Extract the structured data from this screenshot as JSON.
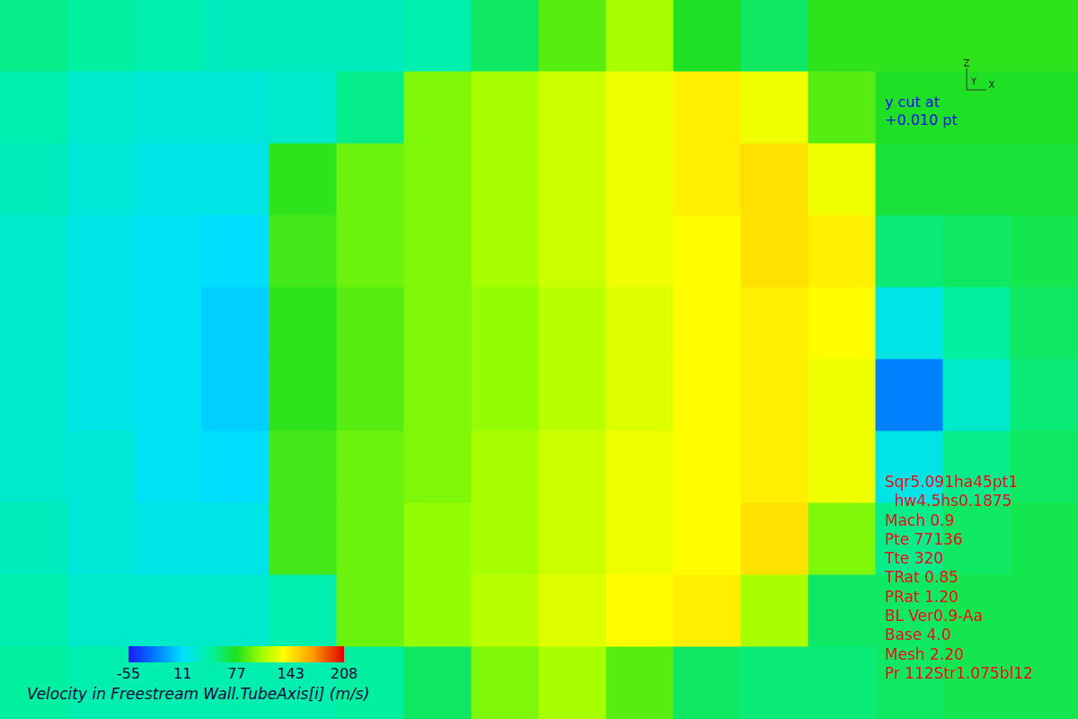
{
  "chart_data": {
    "type": "heatmap",
    "title": "Velocity in Freestream Wall.TubeAxis[i] (m/s)",
    "tick_labels": false,
    "cells": [
      [
        50,
        45,
        40,
        35,
        35,
        35,
        40,
        60,
        90,
        110,
        75,
        60,
        80,
        80,
        80,
        80
      ],
      [
        40,
        30,
        25,
        25,
        30,
        50,
        100,
        110,
        120,
        130,
        140,
        130,
        90,
        75,
        75,
        75
      ],
      [
        35,
        25,
        20,
        20,
        80,
        95,
        100,
        110,
        120,
        130,
        140,
        145,
        130,
        70,
        70,
        70
      ],
      [
        30,
        20,
        15,
        10,
        85,
        95,
        100,
        110,
        120,
        130,
        135,
        145,
        140,
        55,
        60,
        65
      ],
      [
        30,
        20,
        15,
        5,
        80,
        90,
        100,
        105,
        115,
        125,
        135,
        140,
        135,
        20,
        45,
        60
      ],
      [
        30,
        20,
        15,
        5,
        80,
        90,
        100,
        105,
        115,
        125,
        135,
        140,
        130,
        -20,
        30,
        55
      ],
      [
        30,
        25,
        15,
        10,
        85,
        95,
        100,
        110,
        120,
        130,
        135,
        140,
        130,
        20,
        50,
        60
      ],
      [
        35,
        25,
        20,
        20,
        85,
        95,
        105,
        110,
        120,
        130,
        135,
        145,
        100,
        50,
        60,
        65
      ],
      [
        40,
        30,
        30,
        30,
        40,
        95,
        105,
        115,
        125,
        135,
        140,
        110,
        60,
        60,
        65,
        65
      ],
      [
        45,
        40,
        40,
        40,
        40,
        45,
        60,
        100,
        110,
        90,
        60,
        55,
        55,
        60,
        65,
        65
      ]
    ],
    "colorbar": {
      "range": [
        -55,
        208
      ],
      "ticks": [
        -55,
        11,
        77,
        143,
        208
      ]
    },
    "annotations": {
      "axes": [
        "Z",
        "Y",
        "X"
      ],
      "cut": [
        "y cut at",
        "+0.010 pt"
      ],
      "run": [
        "Sqr5.091ha45pt1",
        "  hw4.5hs0.1875",
        "Mach 0.9",
        "Pte 77136",
        "Tte 320",
        "TRat 0.85",
        "PRat 1.20",
        "BL Ver0.9-Aa",
        "Base 4.0",
        "Mesh 2.20",
        "Pr 112Str1.075bl12"
      ]
    }
  }
}
